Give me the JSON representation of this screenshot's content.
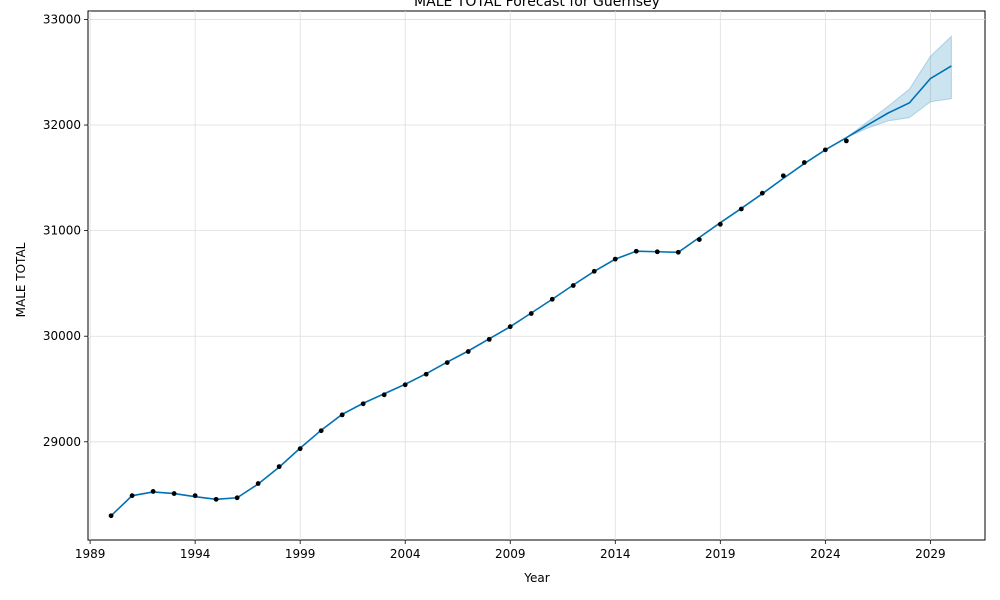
{
  "chart_data": {
    "type": "line",
    "title": "MALE TOTAL Forecast for Guernsey",
    "xlabel": "Year",
    "ylabel": "MALE TOTAL",
    "xlim": [
      1988.9,
      2031.6
    ],
    "ylim": [
      28070,
      33080
    ],
    "x_ticks": [
      1989,
      1994,
      1999,
      2004,
      2009,
      2014,
      2019,
      2024,
      2029
    ],
    "y_ticks": [
      29000,
      30000,
      31000,
      32000,
      33000
    ],
    "grid": true,
    "colors": {
      "forecast_line": "#0072B2",
      "interval": "#0072B2",
      "actual_points": "#000000"
    },
    "actual": {
      "x": [
        1990,
        1991,
        1992,
        1993,
        1994,
        1995,
        1996,
        1997,
        1998,
        1999,
        2000,
        2001,
        2002,
        2003,
        2004,
        2005,
        2006,
        2007,
        2008,
        2009,
        2010,
        2011,
        2012,
        2013,
        2014,
        2015,
        2016,
        2017,
        2018,
        2019,
        2020,
        2021,
        2022,
        2023,
        2024,
        2025
      ],
      "y": [
        28300,
        28490,
        28530,
        28510,
        28490,
        28455,
        28470,
        28605,
        28765,
        28935,
        29105,
        29255,
        29360,
        29445,
        29540,
        29640,
        29750,
        29855,
        29970,
        30090,
        30215,
        30350,
        30480,
        30615,
        30730,
        30805,
        30800,
        30795,
        30915,
        31060,
        31205,
        31355,
        31520,
        31645,
        31765,
        31850
      ]
    },
    "forecast": {
      "x": [
        1990,
        1991,
        1992,
        1993,
        1994,
        1995,
        1996,
        1997,
        1998,
        1999,
        2000,
        2001,
        2002,
        2003,
        2004,
        2005,
        2006,
        2007,
        2008,
        2009,
        2010,
        2011,
        2012,
        2013,
        2014,
        2015,
        2016,
        2017,
        2018,
        2019,
        2020,
        2021,
        2022,
        2023,
        2024,
        2025,
        2026,
        2027,
        2028,
        2029,
        2030
      ],
      "y": [
        28300,
        28490,
        28525,
        28510,
        28480,
        28455,
        28470,
        28600,
        28760,
        28940,
        29110,
        29260,
        29365,
        29455,
        29545,
        29645,
        29755,
        29860,
        29975,
        30090,
        30220,
        30350,
        30485,
        30615,
        30730,
        30805,
        30800,
        30795,
        30935,
        31075,
        31210,
        31350,
        31495,
        31635,
        31765,
        31880,
        32000,
        32115,
        32210,
        32440,
        32560
      ]
    },
    "interval": {
      "x": [
        2025,
        2026,
        2027,
        2028,
        2029,
        2030
      ],
      "lower": [
        31880,
        31970,
        32040,
        32070,
        32220,
        32250
      ],
      "upper": [
        31880,
        32030,
        32180,
        32340,
        32650,
        32840
      ]
    }
  }
}
